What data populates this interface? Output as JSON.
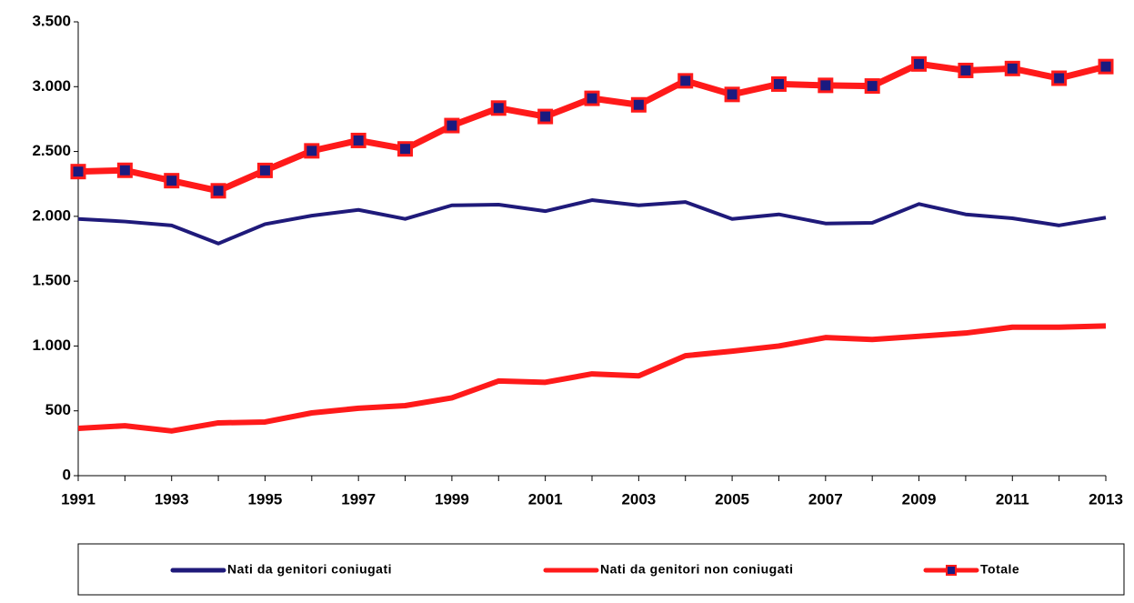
{
  "chart_data": {
    "type": "line",
    "x": [
      1991,
      1992,
      1993,
      1994,
      1995,
      1996,
      1997,
      1998,
      1999,
      2000,
      2001,
      2002,
      2003,
      2004,
      2005,
      2006,
      2007,
      2008,
      2009,
      2010,
      2011,
      2012,
      2013
    ],
    "series": [
      {
        "name": "Nati da genitori coniugati",
        "color": "#1f1a7a",
        "values": [
          1980,
          1960,
          1930,
          1790,
          1940,
          2005,
          2050,
          1980,
          2085,
          2090,
          2040,
          2125,
          2085,
          2110,
          1980,
          2015,
          1945,
          1950,
          2095,
          2015,
          1985,
          1930,
          1990
        ]
      },
      {
        "name": "Nati da genitori non coniugati",
        "color": "#ff1a1a",
        "values": [
          365,
          385,
          345,
          407,
          414,
          484,
          520,
          540,
          600,
          730,
          720,
          785,
          770,
          925,
          960,
          1000,
          1065,
          1050,
          1075,
          1100,
          1145,
          1145,
          1155
        ]
      },
      {
        "name": "Totale",
        "color": "#ff1a1a",
        "marker_color": "#1a1a80",
        "values": [
          2345,
          2355,
          2275,
          2197,
          2354,
          2505,
          2585,
          2520,
          2700,
          2835,
          2770,
          2910,
          2860,
          3045,
          2940,
          3020,
          3010,
          3005,
          3175,
          3125,
          3140,
          3065,
          3155
        ]
      }
    ],
    "xlim": [
      1991,
      2013
    ],
    "xticks": [
      1991,
      1993,
      1995,
      1997,
      1999,
      2001,
      2003,
      2005,
      2007,
      2009,
      2011,
      2013
    ],
    "ylim": [
      0,
      3500
    ],
    "yticks": [
      0,
      500,
      {
        "value": 1000,
        "label": "1.000"
      },
      {
        "value": 1500,
        "label": "1.500"
      },
      {
        "value": 2000,
        "label": "2.000"
      },
      {
        "value": 2500,
        "label": "2.500"
      },
      {
        "value": 3000,
        "label": "3.000"
      },
      {
        "value": 3500,
        "label": "3.500"
      }
    ],
    "grid": false,
    "legend": "bottom"
  }
}
